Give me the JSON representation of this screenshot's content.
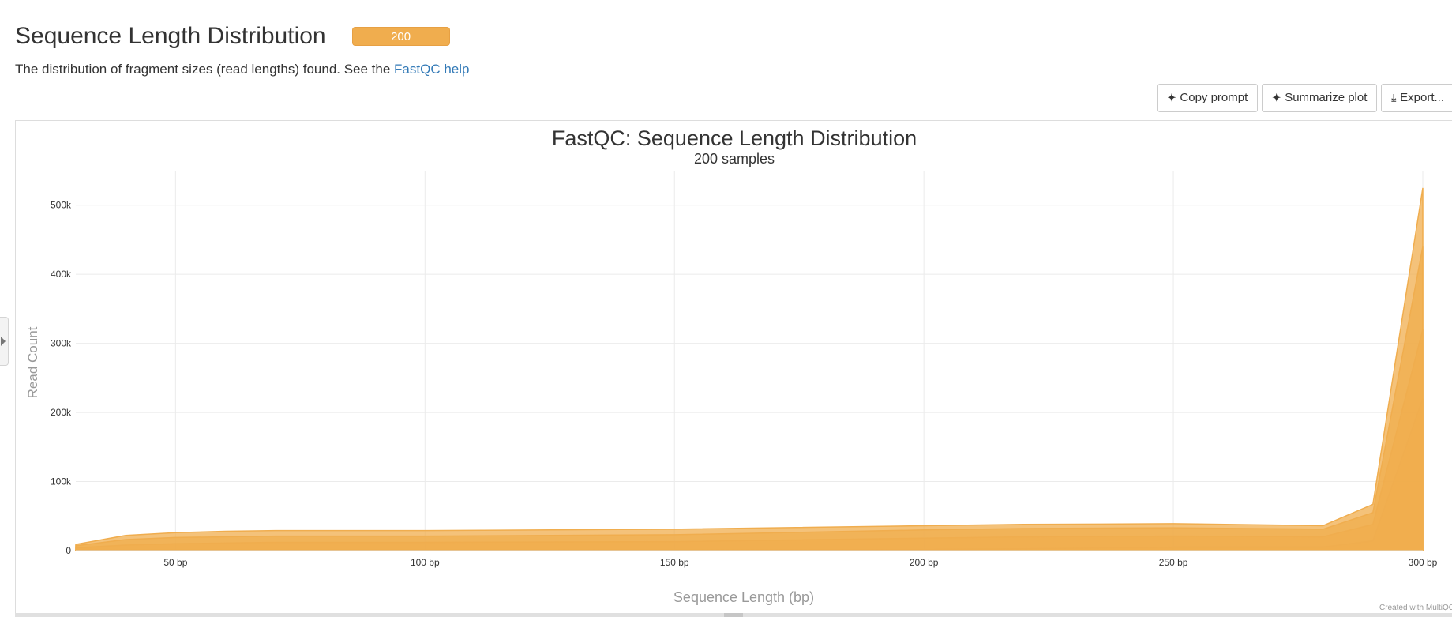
{
  "section": {
    "title": "Sequence Length Distribution",
    "badge": "200",
    "description_text": "The distribution of fragment sizes (read lengths) found. See the ",
    "help_link": "FastQC help"
  },
  "toolbar": {
    "copy_prompt": "Copy prompt",
    "summarize_plot": "Summarize plot",
    "export": "Export..."
  },
  "colors": {
    "series": "#f0ad4e",
    "badge": "#f0ad4e",
    "link": "#337ab7"
  },
  "icons": {
    "copy_prompt": "sparkle-icon",
    "summarize_plot": "sparkle-icon",
    "export": "download-icon",
    "side_panel": "chevron-right-icon"
  },
  "chart_data": {
    "type": "area",
    "title": "FastQC: Sequence Length Distribution",
    "subtitle": "200 samples",
    "xlabel": "Sequence Length (bp)",
    "ylabel": "Read Count",
    "credit": "Created with MultiQC",
    "x_unit": "bp",
    "xlim": [
      30,
      300
    ],
    "ylim": [
      0,
      550000
    ],
    "xticks": [
      {
        "value": 50,
        "label": "50 bp"
      },
      {
        "value": 100,
        "label": "100 bp"
      },
      {
        "value": 150,
        "label": "150 bp"
      },
      {
        "value": 200,
        "label": "200 bp"
      },
      {
        "value": 250,
        "label": "250 bp"
      },
      {
        "value": 300,
        "label": "300 bp"
      }
    ],
    "yticks": [
      {
        "value": 0,
        "label": "0"
      },
      {
        "value": 100000,
        "label": "100k"
      },
      {
        "value": 200000,
        "label": "200k"
      },
      {
        "value": 300000,
        "label": "300k"
      },
      {
        "value": 400000,
        "label": "400k"
      },
      {
        "value": 500000,
        "label": "500k"
      }
    ],
    "grid": true,
    "x": [
      30,
      40,
      50,
      60,
      70,
      100,
      150,
      200,
      220,
      250,
      280,
      290,
      300
    ],
    "series": [
      {
        "values": [
          9000,
          22000,
          26000,
          28000,
          29000,
          29000,
          31000,
          36000,
          38000,
          39000,
          36000,
          67000,
          525000
        ]
      },
      {
        "values": [
          7000,
          16000,
          19000,
          20000,
          21000,
          21000,
          23000,
          30000,
          32000,
          33000,
          31000,
          55000,
          440000
        ]
      },
      {
        "values": [
          4000,
          8000,
          10000,
          11000,
          12000,
          12000,
          13000,
          18000,
          20000,
          21000,
          20000,
          38000,
          320000
        ]
      },
      {
        "values": [
          500,
          800,
          1000,
          1000,
          1000,
          1000,
          1200,
          1500,
          2500,
          5000,
          5000,
          14000,
          220000
        ]
      }
    ]
  }
}
